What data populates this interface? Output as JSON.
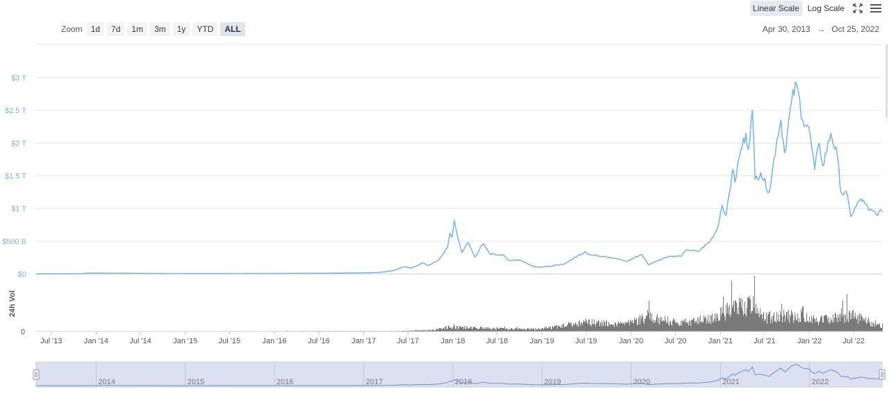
{
  "toolbar": {
    "linear_label": "Linear Scale",
    "log_label": "Log Scale",
    "active_scale": "linear"
  },
  "zoom": {
    "label": "Zoom",
    "options": [
      "1d",
      "7d",
      "1m",
      "3m",
      "1y",
      "YTD",
      "ALL"
    ],
    "selected": "ALL"
  },
  "date_range": {
    "start": "Apr 30, 2013",
    "arrow": "→",
    "end": "Oct 25, 2022"
  },
  "colors": {
    "line": "#7cb5ec",
    "volume": "#7a7a7a",
    "navigator_fill": "#dbe1f1",
    "grid": "#e6e6e6",
    "axis_text": "#7cb5ec"
  },
  "chart_data": {
    "type": "line",
    "ylabel": "",
    "x_range": [
      "2013-04-30",
      "2022-10-25"
    ],
    "y_range": [
      0,
      3000000000000
    ],
    "y_ticks": [
      {
        "value": 0,
        "label": "$0"
      },
      {
        "value": 500000000000,
        "label": "$500 B"
      },
      {
        "value": 1000000000000,
        "label": "$1 T"
      },
      {
        "value": 1500000000000,
        "label": "$1.5 T"
      },
      {
        "value": 2000000000000,
        "label": "$2 T"
      },
      {
        "value": 2500000000000,
        "label": "$2.5 T"
      },
      {
        "value": 3000000000000,
        "label": "$3 T"
      }
    ],
    "x_ticks": [
      {
        "date": "2013-07-01",
        "label": "Jul '13"
      },
      {
        "date": "2014-01-01",
        "label": "Jan '14"
      },
      {
        "date": "2014-07-01",
        "label": "Jul '14"
      },
      {
        "date": "2015-01-01",
        "label": "Jan '15"
      },
      {
        "date": "2015-07-01",
        "label": "Jul '15"
      },
      {
        "date": "2016-01-01",
        "label": "Jan '16"
      },
      {
        "date": "2016-07-01",
        "label": "Jul '16"
      },
      {
        "date": "2017-01-01",
        "label": "Jan '17"
      },
      {
        "date": "2017-07-01",
        "label": "Jul '17"
      },
      {
        "date": "2018-01-01",
        "label": "Jan '18"
      },
      {
        "date": "2018-07-01",
        "label": "Jul '18"
      },
      {
        "date": "2019-01-01",
        "label": "Jan '19"
      },
      {
        "date": "2019-07-01",
        "label": "Jul '19"
      },
      {
        "date": "2020-01-01",
        "label": "Jan '20"
      },
      {
        "date": "2020-07-01",
        "label": "Jul '20"
      },
      {
        "date": "2021-01-01",
        "label": "Jan '21"
      },
      {
        "date": "2021-07-01",
        "label": "Jul '21"
      },
      {
        "date": "2022-01-01",
        "label": "Jan '22"
      },
      {
        "date": "2022-07-01",
        "label": "Jul '22"
      }
    ],
    "series": [
      {
        "name": "",
        "points": [
          [
            "2013-04-30",
            1500000000.0
          ],
          [
            "2013-11-01",
            3000000000.0
          ],
          [
            "2013-12-04",
            14000000000.0
          ],
          [
            "2014-02-01",
            12000000000.0
          ],
          [
            "2014-07-01",
            8000000000.0
          ],
          [
            "2015-01-15",
            4000000000.0
          ],
          [
            "2015-07-01",
            5000000000.0
          ],
          [
            "2016-01-01",
            7000000000.0
          ],
          [
            "2016-07-01",
            10000000000.0
          ],
          [
            "2017-01-01",
            17000000000.0
          ],
          [
            "2017-03-01",
            22000000000.0
          ],
          [
            "2017-05-01",
            50000000000.0
          ],
          [
            "2017-06-15",
            110000000000.0
          ],
          [
            "2017-07-15",
            90000000000.0
          ],
          [
            "2017-09-01",
            170000000000.0
          ],
          [
            "2017-09-20",
            130000000000.0
          ],
          [
            "2017-11-01",
            200000000000.0
          ],
          [
            "2017-12-10",
            400000000000.0
          ],
          [
            "2017-12-20",
            620000000000.0
          ],
          [
            "2017-12-28",
            560000000000.0
          ],
          [
            "2018-01-07",
            820000000000.0
          ],
          [
            "2018-01-20",
            580000000000.0
          ],
          [
            "2018-02-06",
            330000000000.0
          ],
          [
            "2018-03-05",
            480000000000.0
          ],
          [
            "2018-04-01",
            260000000000.0
          ],
          [
            "2018-05-05",
            460000000000.0
          ],
          [
            "2018-06-01",
            310000000000.0
          ],
          [
            "2018-07-25",
            290000000000.0
          ],
          [
            "2018-08-15",
            210000000000.0
          ],
          [
            "2018-10-01",
            215000000000.0
          ],
          [
            "2018-11-25",
            120000000000.0
          ],
          [
            "2018-12-15",
            105000000000.0
          ],
          [
            "2019-02-01",
            115000000000.0
          ],
          [
            "2019-04-01",
            150000000000.0
          ],
          [
            "2019-06-26",
            340000000000.0
          ],
          [
            "2019-07-20",
            290000000000.0
          ],
          [
            "2019-09-15",
            270000000000.0
          ],
          [
            "2019-10-26",
            240000000000.0
          ],
          [
            "2019-12-15",
            190000000000.0
          ],
          [
            "2020-02-13",
            300000000000.0
          ],
          [
            "2020-03-13",
            140000000000.0
          ],
          [
            "2020-04-15",
            200000000000.0
          ],
          [
            "2020-06-01",
            270000000000.0
          ],
          [
            "2020-07-20",
            270000000000.0
          ],
          [
            "2020-08-20",
            370000000000.0
          ],
          [
            "2020-10-01",
            340000000000.0
          ],
          [
            "2020-11-20",
            500000000000.0
          ],
          [
            "2020-12-20",
            700000000000.0
          ],
          [
            "2021-01-08",
            1050000000000.0
          ],
          [
            "2021-01-25",
            900000000000.0
          ],
          [
            "2021-02-20",
            1600000000000.0
          ],
          [
            "2021-03-01",
            1400000000000.0
          ],
          [
            "2021-03-20",
            1800000000000.0
          ],
          [
            "2021-04-15",
            2150000000000.0
          ],
          [
            "2021-04-25",
            1900000000000.0
          ],
          [
            "2021-05-12",
            2500000000000.0
          ],
          [
            "2021-05-23",
            1450000000000.0
          ],
          [
            "2021-06-15",
            1550000000000.0
          ],
          [
            "2021-07-20",
            1250000000000.0
          ],
          [
            "2021-08-20",
            2050000000000.0
          ],
          [
            "2021-09-06",
            2350000000000.0
          ],
          [
            "2021-09-21",
            1850000000000.0
          ],
          [
            "2021-10-20",
            2650000000000.0
          ],
          [
            "2021-11-09",
            2900000000000.0
          ],
          [
            "2021-12-04",
            2350000000000.0
          ],
          [
            "2021-12-28",
            2250000000000.0
          ],
          [
            "2022-01-22",
            1600000000000.0
          ],
          [
            "2022-02-10",
            2000000000000.0
          ],
          [
            "2022-02-24",
            1650000000000.0
          ],
          [
            "2022-03-29",
            2150000000000.0
          ],
          [
            "2022-04-25",
            1800000000000.0
          ],
          [
            "2022-05-10",
            1250000000000.0
          ],
          [
            "2022-06-05",
            1200000000000.0
          ],
          [
            "2022-06-18",
            880000000000.0
          ],
          [
            "2022-07-30",
            1150000000000.0
          ],
          [
            "2022-08-15",
            1080000000000.0
          ],
          [
            "2022-09-01",
            970000000000.0
          ],
          [
            "2022-09-15",
            970000000000.0
          ],
          [
            "2022-10-01",
            920000000000.0
          ],
          [
            "2022-10-25",
            950000000000.0
          ]
        ]
      }
    ],
    "volume_axis": {
      "label": "24h Vol",
      "ticks": [
        {
          "value": 0,
          "label": "0"
        }
      ]
    },
    "volume_profile": [
      [
        "2013-04-30",
        0.0
      ],
      [
        "2017-06-01",
        0.01
      ],
      [
        "2017-10-01",
        0.03
      ],
      [
        "2017-12-20",
        0.1
      ],
      [
        "2018-06-01",
        0.07
      ],
      [
        "2018-12-01",
        0.05
      ],
      [
        "2019-04-01",
        0.12
      ],
      [
        "2019-07-01",
        0.2
      ],
      [
        "2019-12-01",
        0.15
      ],
      [
        "2020-03-13",
        0.32
      ],
      [
        "2020-07-01",
        0.18
      ],
      [
        "2020-12-01",
        0.28
      ],
      [
        "2021-02-01",
        0.45
      ],
      [
        "2021-05-19",
        0.6
      ],
      [
        "2021-07-01",
        0.3
      ],
      [
        "2021-09-01",
        0.35
      ],
      [
        "2021-12-01",
        0.3
      ],
      [
        "2022-02-01",
        0.25
      ],
      [
        "2022-06-15",
        0.35
      ],
      [
        "2022-10-25",
        0.12
      ]
    ],
    "volume_spikes": [
      [
        "2021-05-19",
        1.0
      ],
      [
        "2021-04-23",
        0.62
      ],
      [
        "2021-01-11",
        0.63
      ],
      [
        "2021-09-07",
        0.5
      ],
      [
        "2021-11-26",
        0.4
      ],
      [
        "2022-05-10",
        0.42
      ],
      [
        "2022-06-13",
        0.38
      ],
      [
        "2020-03-13",
        0.55
      ],
      [
        "2021-02-23",
        0.55
      ],
      [
        "2021-12-04",
        0.45
      ]
    ],
    "navigator": {
      "year_labels": [
        "2014",
        "2015",
        "2016",
        "2017",
        "2018",
        "2019",
        "2020",
        "2021",
        "2022"
      ]
    }
  }
}
